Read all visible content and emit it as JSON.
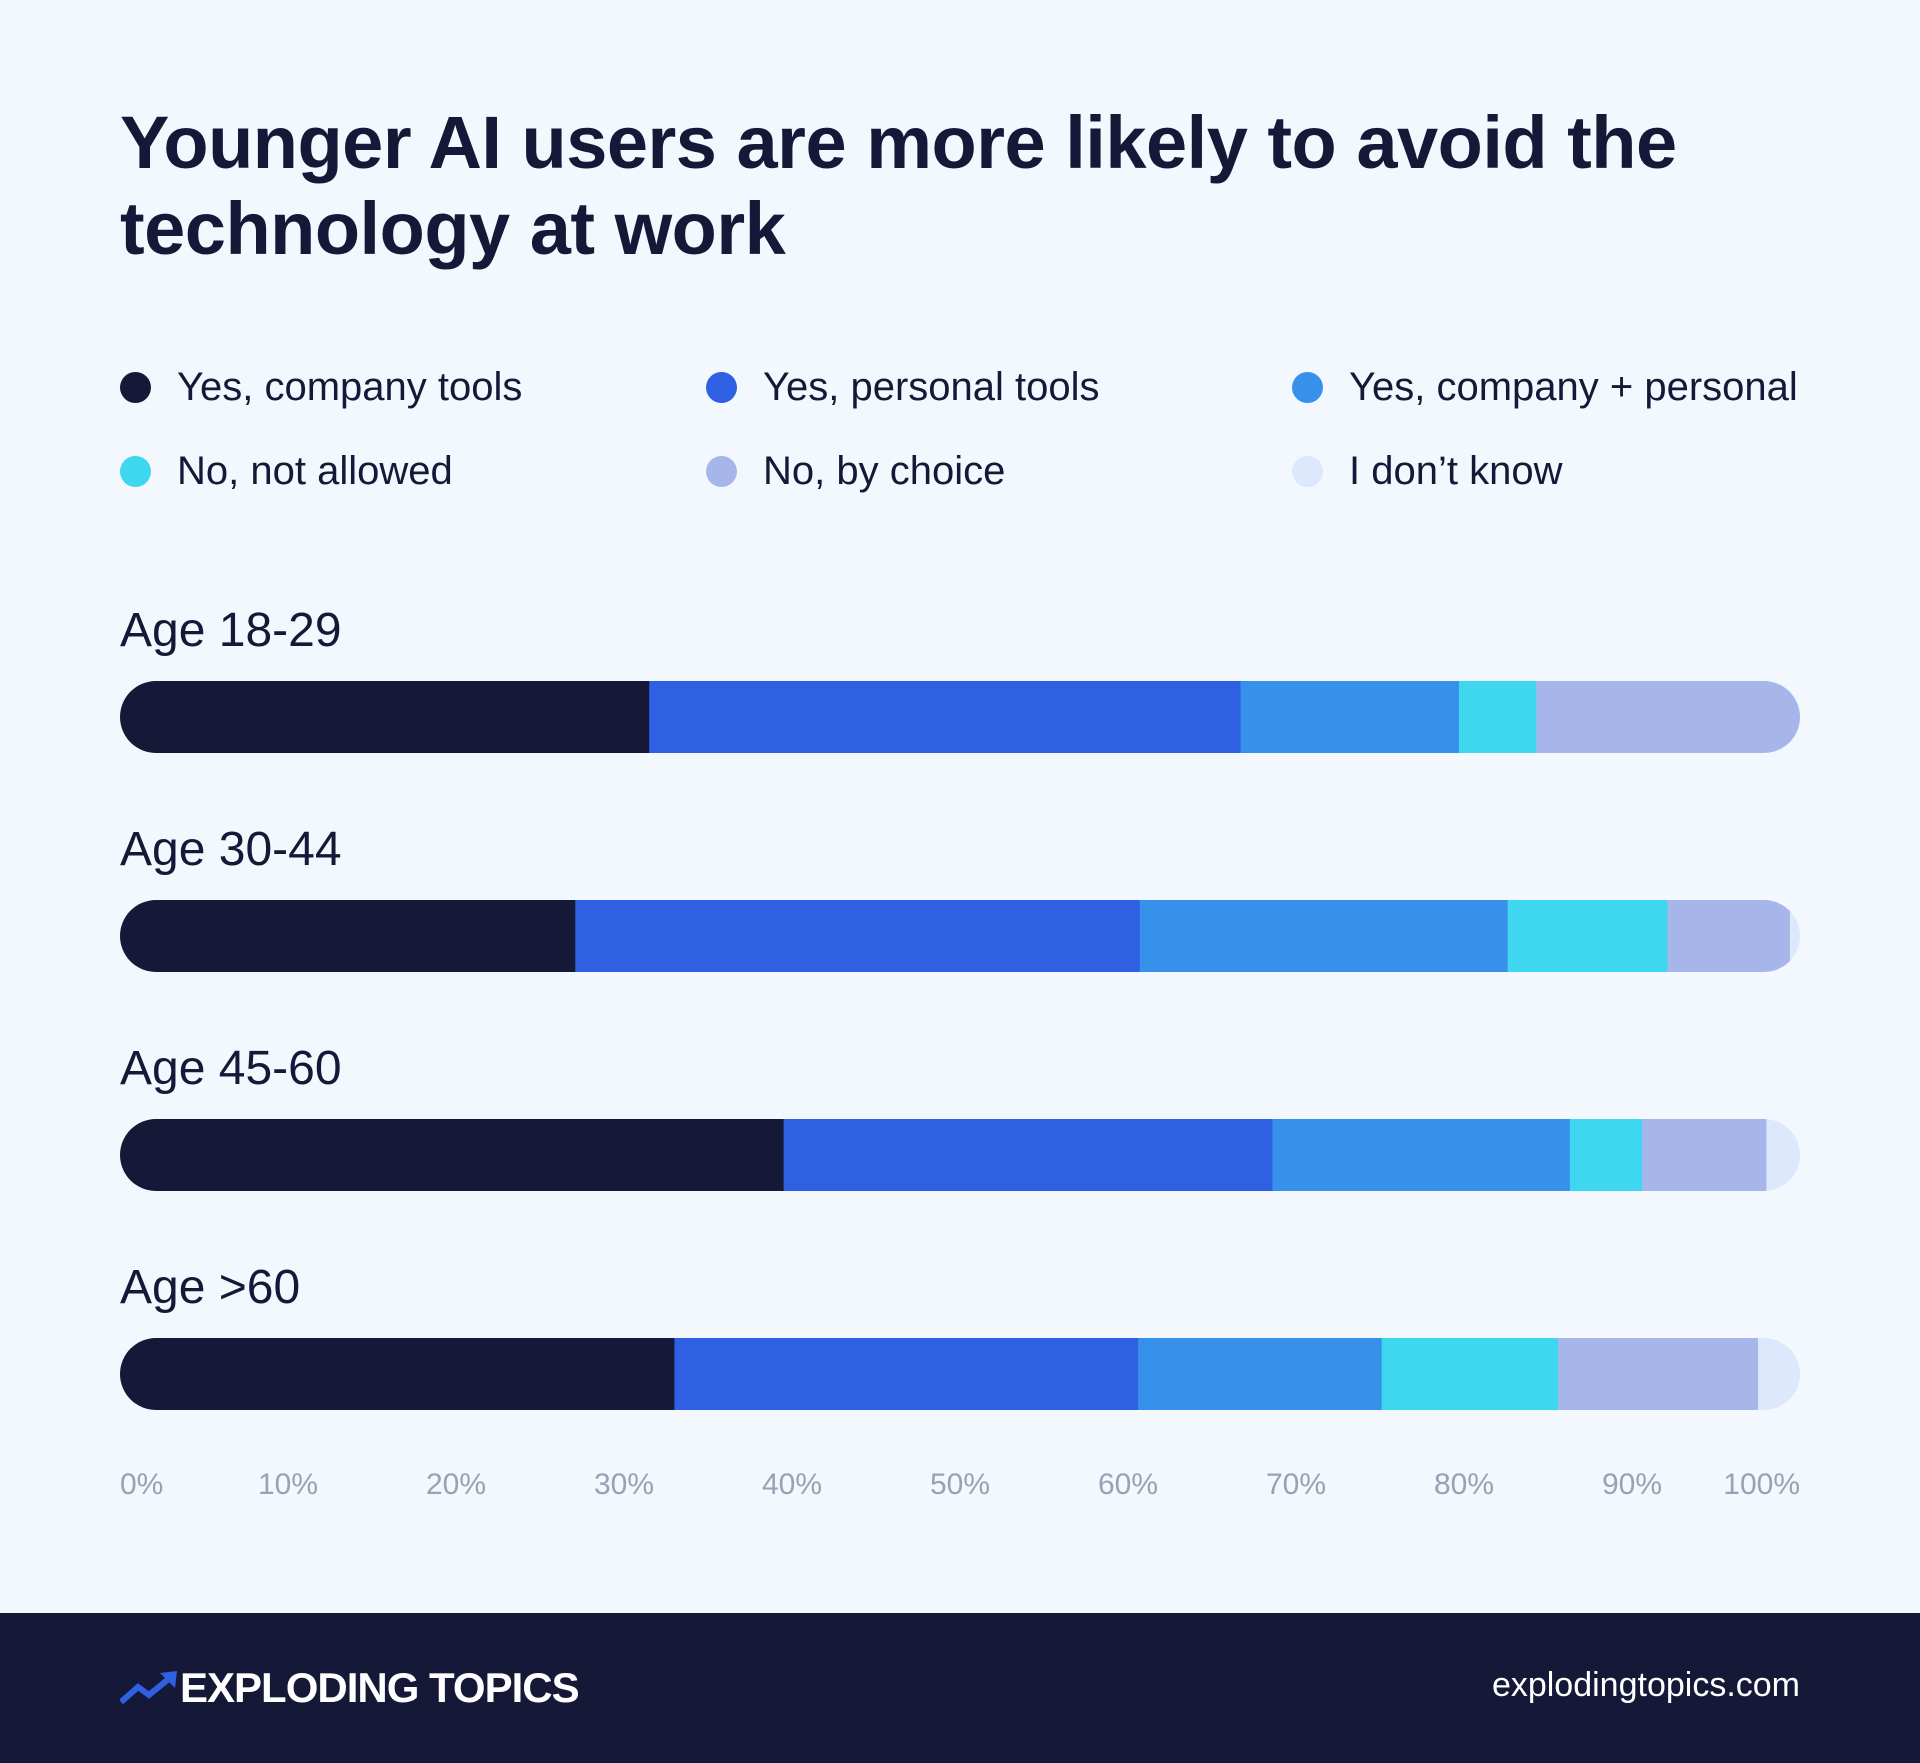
{
  "title": "Younger AI users are more likely to avoid the technology at work",
  "colors": {
    "background": "#f3f8fe",
    "text": "#151937",
    "tick_text": "#9aa1b3",
    "footer": "#151937",
    "brand_accent": "#2f5fe3"
  },
  "chart_data": {
    "type": "bar",
    "orientation": "horizontal",
    "stacked": true,
    "title": "Younger AI users are more likely to avoid the technology at work",
    "categories": [
      "Age 18-29",
      "Age 30-44",
      "Age 45-60",
      "Age >60"
    ],
    "series": [
      {
        "name": "Yes, company tools",
        "color": "#151937",
        "values": [
          31.5,
          27.1,
          39.5,
          33
        ]
      },
      {
        "name": "Yes, personal tools",
        "color": "#2f5fe3",
        "values": [
          35.2,
          33.6,
          29.1,
          27.6
        ]
      },
      {
        "name": "Yes, company + personal",
        "color": "#3791ea",
        "values": [
          13,
          21.9,
          17.7,
          14.5
        ]
      },
      {
        "name": "No, not allowed",
        "color": "#3fd6ef",
        "values": [
          4.6,
          9.5,
          4.3,
          10.5
        ]
      },
      {
        "name": "No, by choice",
        "color": "#a6b6eb",
        "values": [
          15.7,
          7.3,
          7.4,
          11.9
        ]
      },
      {
        "name": "I don’t know",
        "color": "#dce8fb",
        "values": [
          0,
          0.6,
          2,
          2.5
        ]
      }
    ],
    "x_ticks": [
      "0%",
      "10%",
      "20%",
      "30%",
      "40%",
      "50%",
      "60%",
      "70%",
      "80%",
      "90%",
      "100%"
    ],
    "xlim": [
      0,
      100
    ],
    "grid": false,
    "legend_position": "top"
  },
  "footer": {
    "brand": "EXPLODING TOPICS",
    "url": "explodingtopics.com",
    "logo_icon": "trend-arrow-icon"
  }
}
